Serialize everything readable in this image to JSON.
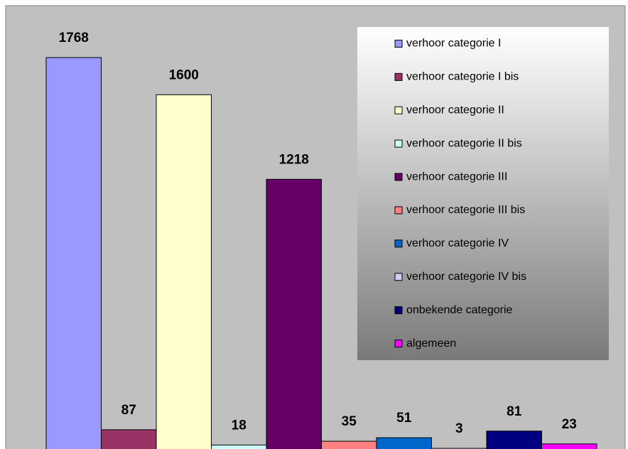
{
  "chart_data": {
    "type": "bar",
    "categories": [
      "verhoor categorie I",
      "verhoor categorie I bis",
      "verhoor categorie II",
      "verhoor categorie II bis",
      "verhoor categorie III",
      "verhoor categorie III bis",
      "verhoor categorie IV",
      "verhoor categorie IV bis",
      "onbekende categorie",
      "algemeen"
    ],
    "values": [
      1768,
      87,
      1600,
      18,
      1218,
      35,
      51,
      3,
      81,
      23
    ],
    "colors": [
      "#9999ff",
      "#993366",
      "#ffffcc",
      "#ccffff",
      "#660066",
      "#ff8080",
      "#0066cc",
      "#ccccff",
      "#000080",
      "#ff00ff"
    ],
    "legend": "upper right"
  }
}
